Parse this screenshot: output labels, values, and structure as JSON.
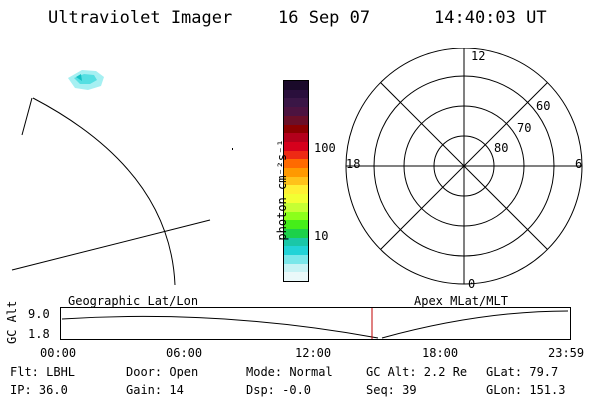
{
  "header": {
    "instrument": "Ultraviolet Imager",
    "date": "16 Sep 07",
    "time": "14:40:03 UT"
  },
  "colorbar": {
    "label": "photon cm⁻²s⁻¹",
    "ticks": [
      "100",
      "10"
    ],
    "colors": [
      "#1a0a2a",
      "#2a0f3c",
      "#3a1646",
      "#4c1340",
      "#6a0f28",
      "#8b0000",
      "#b3001b",
      "#d6001c",
      "#ee2a14",
      "#ff6a00",
      "#ff9900",
      "#ffc21a",
      "#ffef33",
      "#f2ff33",
      "#c6ff33",
      "#8cff1a",
      "#45ee19",
      "#1cd14a",
      "#1ac7a8",
      "#22d3d7",
      "#7ae7ea",
      "#c7f3f5",
      "#eaf9fa"
    ]
  },
  "polar": {
    "mlt_labels": {
      "top": "12",
      "left": "18",
      "right": "6",
      "bottom": "0"
    },
    "lat_labels": [
      "60",
      "70",
      "80"
    ]
  },
  "map_labels": {
    "left": "Geographic Lat/Lon",
    "right": "Apex MLat/MLT"
  },
  "altitude_plot": {
    "ylabel": "GC Alt",
    "y_ticks": [
      "9.0",
      "1.8"
    ],
    "x_ticks": [
      "00:00",
      "06:00",
      "12:00",
      "18:00",
      "23:59"
    ],
    "current_time_marker": "14:40"
  },
  "footer": {
    "row1": [
      "Flt: LBHL",
      "Door: Open",
      "Mode: Normal",
      "GC Alt: 2.2 Re",
      "GLat: 79.7"
    ],
    "row2": [
      "IP: 36.0",
      "Gain: 14",
      "Dsp:  -0.0",
      "Seq: 39",
      "GLon: 151.3"
    ]
  }
}
